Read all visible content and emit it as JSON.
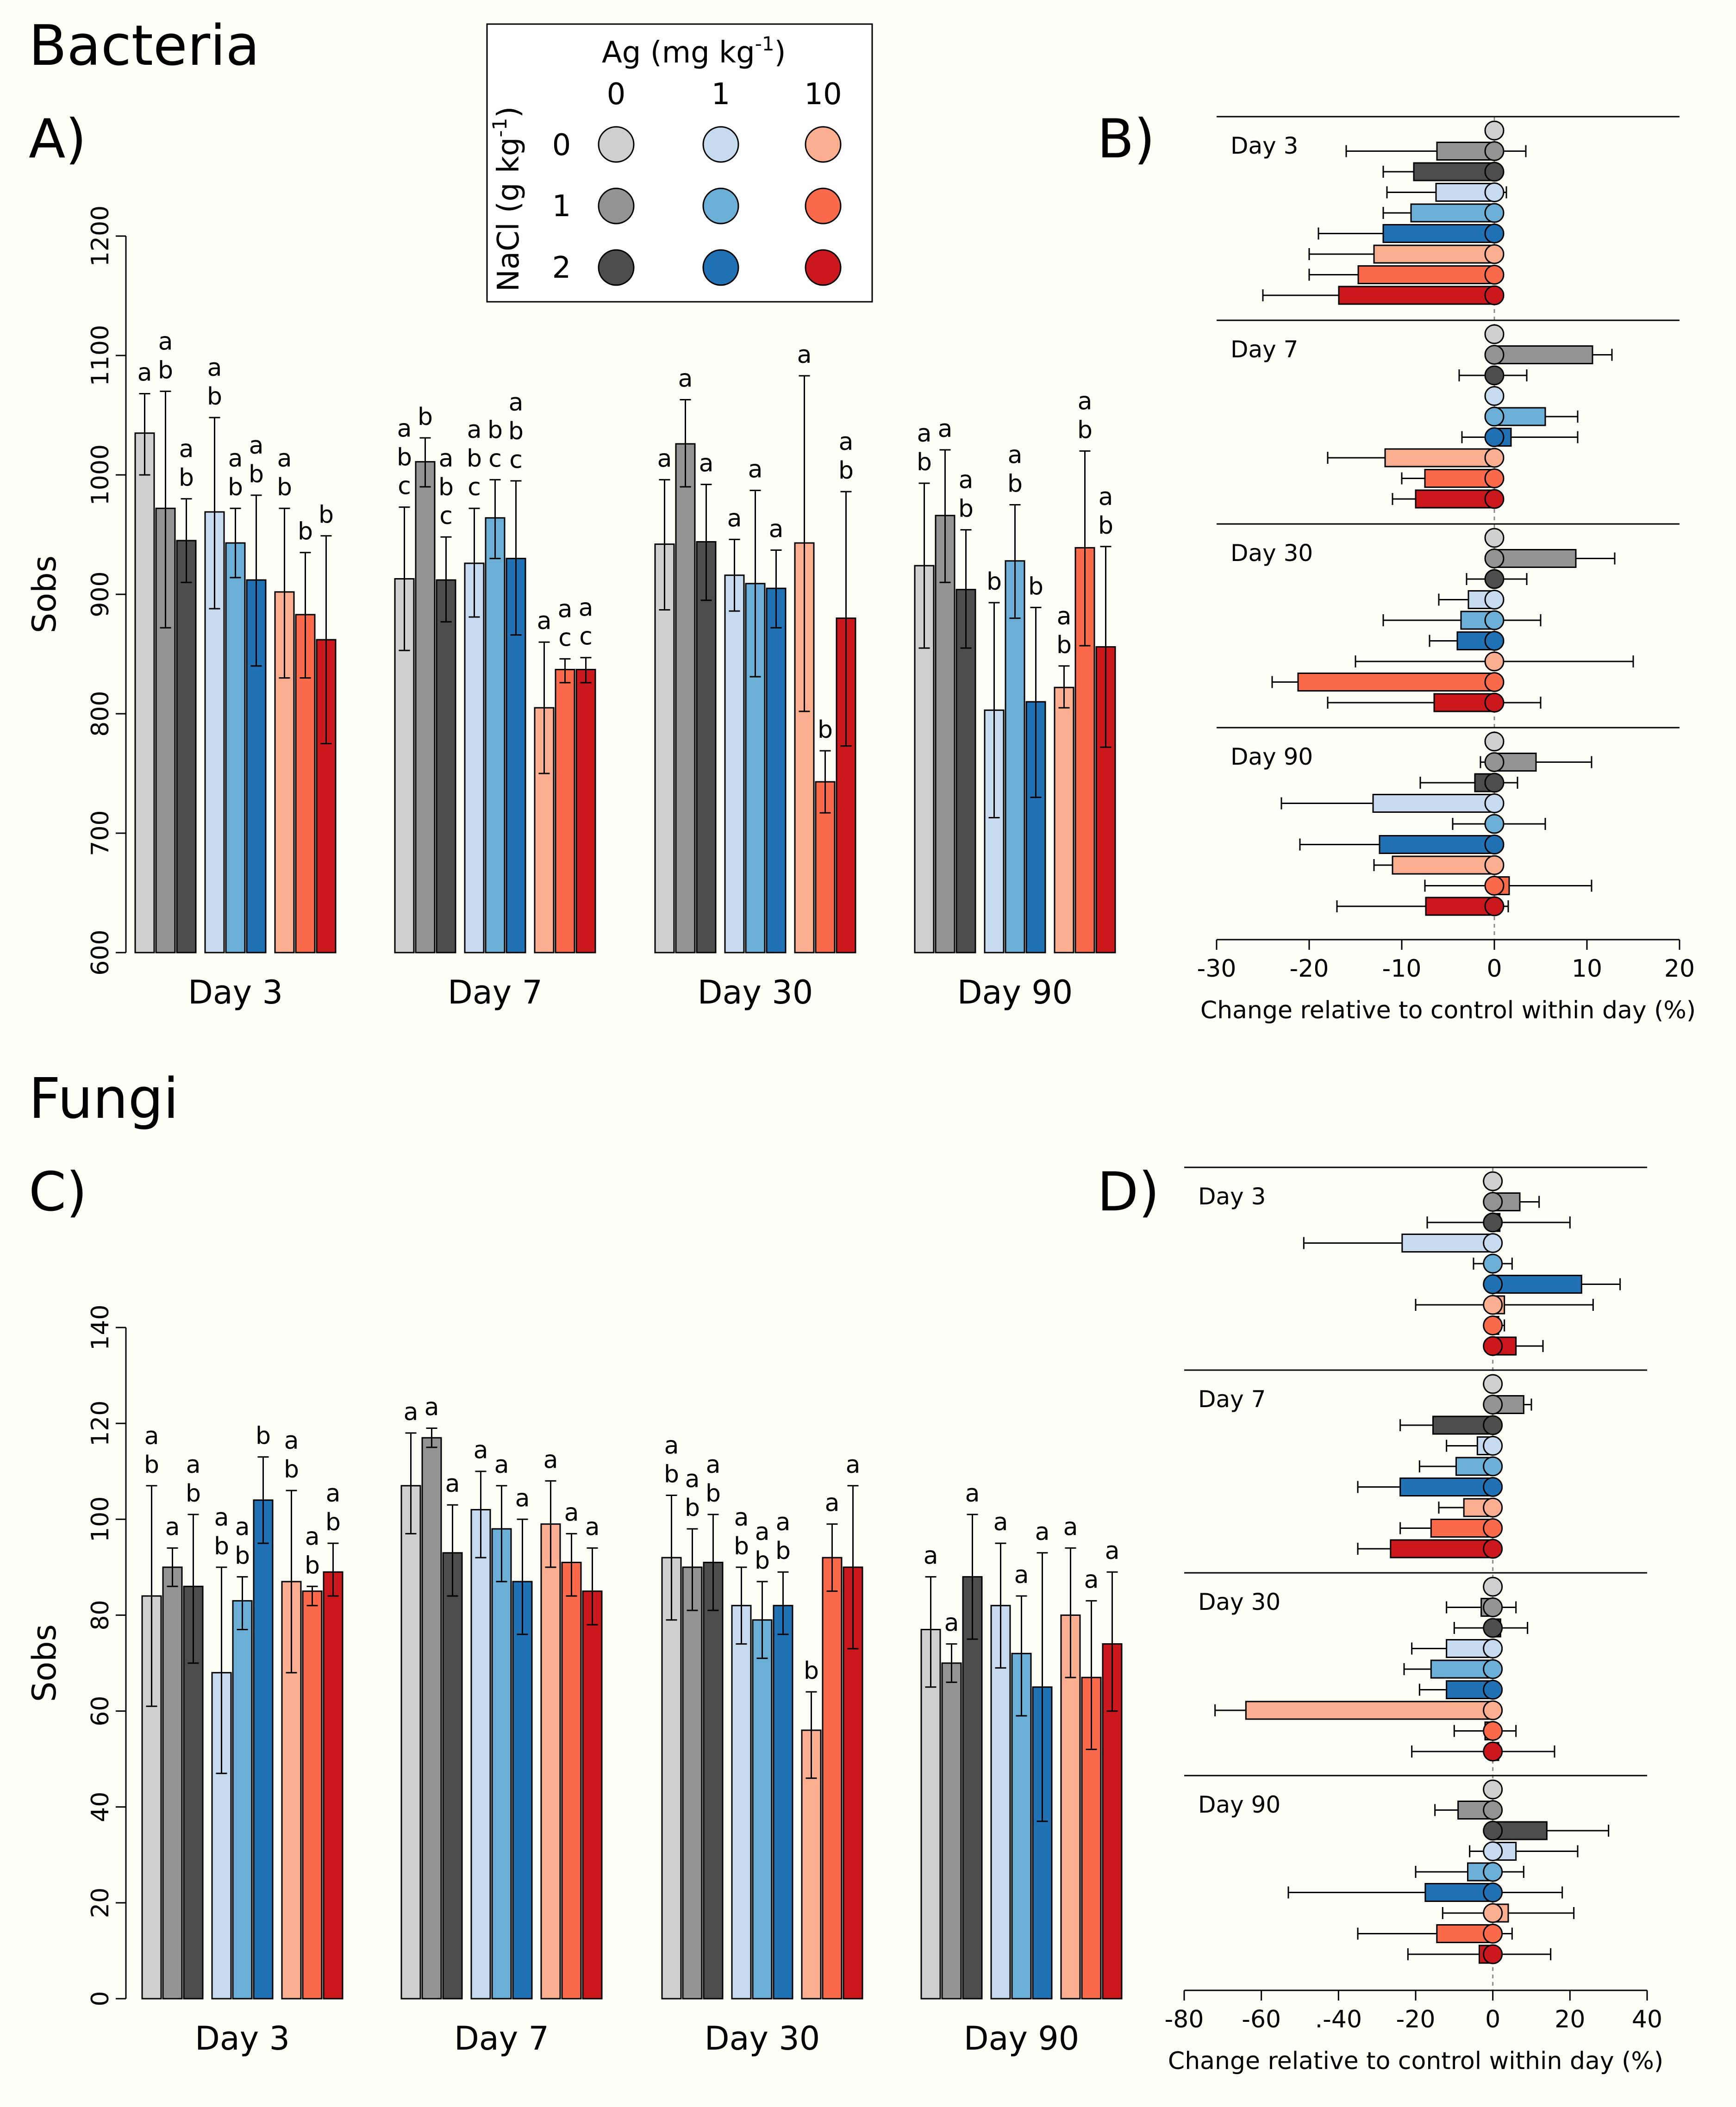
{
  "labels": {
    "bacteria": "Bacteria",
    "fungi": "Fungi",
    "panelA": "A)",
    "panelB": "B)",
    "panelC": "C)",
    "panelD": "D)"
  },
  "legend": {
    "ag_title": "Ag (mg kg",
    "ag_exp": "-1",
    "ag_close": ")",
    "ag_levels": [
      "0",
      "1",
      "10"
    ],
    "nacl_title": "NaCl (g kg",
    "nacl_exp": "-1",
    "nacl_close": ")",
    "nacl_levels": [
      "0",
      "1",
      "2"
    ]
  },
  "colors": [
    "#cfcfcf",
    "#939393",
    "#4d4d4d",
    "#c6dbef",
    "#6baed6",
    "#2171b5",
    "#fcae91",
    "#fb6a4a",
    "#cb181d"
  ],
  "chart_data": [
    {
      "id": "A",
      "type": "bar",
      "ylabel": "Sobs",
      "ylim": [
        600,
        1200
      ],
      "yticks": [
        "600",
        "700",
        "800",
        "900",
        "1000",
        "1100",
        "1200"
      ],
      "categories": [
        "Day 3",
        "Day 7",
        "Day 30",
        "Day 90"
      ],
      "values": [
        [
          1035,
          972,
          945,
          969,
          943,
          912,
          902,
          883,
          862
        ],
        [
          913,
          1011,
          912,
          926,
          964,
          930,
          805,
          837,
          837
        ],
        [
          942,
          1026,
          944,
          916,
          909,
          905,
          943,
          743,
          880
        ],
        [
          924,
          966,
          904,
          803,
          928,
          810,
          822,
          939,
          856
        ]
      ],
      "errors": [
        [
          [
            1000,
            1068
          ],
          [
            872,
            1070
          ],
          [
            910,
            980
          ],
          [
            888,
            1048
          ],
          [
            914,
            972
          ],
          [
            840,
            983
          ],
          [
            830,
            972
          ],
          [
            830,
            935
          ],
          [
            775,
            949
          ]
        ],
        [
          [
            853,
            973
          ],
          [
            990,
            1031
          ],
          [
            877,
            948
          ],
          [
            881,
            972
          ],
          [
            930,
            996
          ],
          [
            866,
            995
          ],
          [
            750,
            860
          ],
          [
            826,
            846
          ],
          [
            826,
            847
          ]
        ],
        [
          [
            887,
            996
          ],
          [
            990,
            1063
          ],
          [
            895,
            992
          ],
          [
            886,
            946
          ],
          [
            831,
            987
          ],
          [
            872,
            937
          ],
          [
            802,
            1083
          ],
          [
            717,
            769
          ],
          [
            773,
            986
          ]
        ],
        [
          [
            855,
            993
          ],
          [
            910,
            1021
          ],
          [
            855,
            954
          ],
          [
            713,
            893
          ],
          [
            880,
            975
          ],
          [
            730,
            889
          ],
          [
            805,
            840
          ],
          [
            857,
            1020
          ],
          [
            772,
            940
          ]
        ]
      ],
      "letters": [
        [
          "a",
          "ab",
          "ab",
          "ab",
          "ab",
          "ab",
          "ab",
          "b",
          "b"
        ],
        [
          "abc",
          "b",
          "abc",
          "abc",
          "bc",
          "abc",
          "a",
          "ac",
          "ac"
        ],
        [
          "a",
          "a",
          "a",
          "a",
          "a",
          "a",
          "a",
          "b",
          "ab"
        ],
        [
          "ab",
          "a",
          "ab",
          "b",
          "ab",
          "b",
          "ab",
          "ab",
          "ab"
        ]
      ]
    },
    {
      "id": "C",
      "type": "bar",
      "ylabel": "Sobs",
      "ylim": [
        0,
        140
      ],
      "yticks": [
        "0",
        "20",
        "40",
        "60",
        "80",
        "100",
        "120",
        "140"
      ],
      "categories": [
        "Day 3",
        "Day 7",
        "Day 30",
        "Day 90"
      ],
      "values": [
        [
          84,
          90,
          86,
          68,
          83,
          104,
          87,
          85,
          89
        ],
        [
          107,
          117,
          93,
          102,
          98,
          87,
          99,
          91,
          85
        ],
        [
          92,
          90,
          91,
          82,
          79,
          82,
          56,
          92,
          90
        ],
        [
          77,
          70,
          88,
          82,
          72,
          65,
          80,
          67,
          74
        ]
      ],
      "errors": [
        [
          [
            61,
            107
          ],
          [
            86,
            94
          ],
          [
            70,
            101
          ],
          [
            47,
            90
          ],
          [
            77,
            88
          ],
          [
            95,
            113
          ],
          [
            68,
            106
          ],
          [
            82,
            86
          ],
          [
            84,
            95
          ]
        ],
        [
          [
            97,
            118
          ],
          [
            115,
            119
          ],
          [
            84,
            103
          ],
          [
            92,
            110
          ],
          [
            87,
            107
          ],
          [
            76,
            100
          ],
          [
            90,
            108
          ],
          [
            84,
            97
          ],
          [
            78,
            94
          ]
        ],
        [
          [
            79,
            105
          ],
          [
            81,
            98
          ],
          [
            81,
            101
          ],
          [
            74,
            90
          ],
          [
            71,
            87
          ],
          [
            76,
            89
          ],
          [
            46,
            64
          ],
          [
            85,
            99
          ],
          [
            73,
            107
          ]
        ],
        [
          [
            65,
            88
          ],
          [
            66,
            74
          ],
          [
            75,
            101
          ],
          [
            69,
            95
          ],
          [
            59,
            84
          ],
          [
            37,
            93
          ],
          [
            67,
            94
          ],
          [
            52,
            83
          ],
          [
            60,
            89
          ]
        ]
      ],
      "letters": [
        [
          "ab",
          "a",
          "ab",
          "ab",
          "ab",
          "b",
          "ab",
          "ab",
          "ab"
        ],
        [
          "a",
          "a",
          "a",
          "a",
          "a",
          "a",
          "a",
          "a",
          "a"
        ],
        [
          "ab",
          "ab",
          "ab",
          "ab",
          "ab",
          "ab",
          "b",
          "a",
          "a"
        ],
        [
          "a",
          "a",
          "a",
          "a",
          "a",
          "a",
          "a",
          "a",
          "a"
        ]
      ]
    },
    {
      "id": "B",
      "type": "bar",
      "orientation": "horizontal",
      "xlabel": "Change relative to control within day (%)",
      "xlim": [
        -30,
        20
      ],
      "xticks": [
        "-30",
        "-20",
        "-10",
        "0",
        "10",
        "20"
      ],
      "groups": [
        {
          "label": "Day 3",
          "values": [
            0,
            -6.2,
            -8.7,
            -6.3,
            -9.0,
            -12.0,
            -13.0,
            -14.7,
            -16.8
          ],
          "errors": [
            [
              0,
              0
            ],
            [
              -16,
              3.4
            ],
            [
              -12,
              -3.6
            ],
            [
              -11.6,
              1.3
            ],
            [
              -12,
              -5.5
            ],
            [
              -19,
              -4
            ],
            [
              -20,
              -5
            ],
            [
              -20,
              -9
            ],
            [
              -25,
              -8
            ]
          ]
        },
        {
          "label": "Day 7",
          "values": [
            0,
            10.6,
            -0.2,
            0,
            5.5,
            1.8,
            -11.8,
            -7.5,
            -8.5
          ],
          "errors": [
            [
              0,
              0
            ],
            [
              8.5,
              12.7
            ],
            [
              -3.8,
              3.5
            ],
            [
              0,
              0
            ],
            [
              2,
              9
            ],
            [
              -3.5,
              9
            ],
            [
              -18,
              -5
            ],
            [
              -10,
              -5
            ],
            [
              -11,
              -5
            ]
          ]
        },
        {
          "label": "Day 30",
          "values": [
            0,
            8.8,
            0.2,
            -2.8,
            -3.6,
            -4.0,
            0.1,
            -21.2,
            -6.5
          ],
          "errors": [
            [
              0,
              0
            ],
            [
              5,
              13
            ],
            [
              -3,
              3.5
            ],
            [
              -6,
              0.8
            ],
            [
              -12,
              5
            ],
            [
              -7,
              0
            ],
            [
              -15,
              15
            ],
            [
              -24,
              -18.5
            ],
            [
              -18,
              5
            ]
          ]
        },
        {
          "label": "Day 90",
          "values": [
            0,
            4.5,
            -2.1,
            -13.1,
            -0.1,
            -12.4,
            -11.0,
            1.6,
            -7.4
          ],
          "errors": [
            [
              0,
              0
            ],
            [
              -1.5,
              10.5
            ],
            [
              -8,
              2.5
            ],
            [
              -23,
              -3.5
            ],
            [
              -4.5,
              5.5
            ],
            [
              -21,
              -4
            ],
            [
              -13,
              -9
            ],
            [
              -7.5,
              10.5
            ],
            [
              -17,
              1.5
            ]
          ]
        }
      ]
    },
    {
      "id": "D",
      "type": "bar",
      "orientation": "horizontal",
      "xlabel": "Change relative to control within day (%)",
      "xlim": [
        -80,
        40
      ],
      "xticks": [
        "-80",
        "-60",
        ".-40",
        "-20",
        "0",
        "20",
        "40"
      ],
      "groups": [
        {
          "label": "Day 3",
          "values": [
            0,
            7.0,
            1.8,
            -23.5,
            -0.5,
            23.0,
            3.0,
            1.5,
            6.0
          ],
          "errors": [
            [
              0,
              0
            ],
            [
              2,
              12
            ],
            [
              -17,
              20
            ],
            [
              -49,
              0
            ],
            [
              -5,
              5
            ],
            [
              13,
              33
            ],
            [
              -20,
              26
            ],
            [
              0,
              3
            ],
            [
              0,
              13
            ]
          ]
        },
        {
          "label": "Day 7",
          "values": [
            0,
            8.0,
            -15.5,
            -4.0,
            -9.5,
            -24.0,
            -7.5,
            -16.0,
            -26.5
          ],
          "errors": [
            [
              0,
              0
            ],
            [
              6,
              10
            ],
            [
              -24,
              -5
            ],
            [
              -12,
              0
            ],
            [
              -19,
              -2
            ],
            [
              -35,
              -13
            ],
            [
              -14,
              0
            ],
            [
              -24,
              -10
            ],
            [
              -35,
              -18
            ]
          ]
        },
        {
          "label": "Day 30",
          "values": [
            0,
            -3.0,
            2.0,
            -12.0,
            -16.0,
            -12.0,
            -64.0,
            -2.0,
            1.5
          ],
          "errors": [
            [
              0,
              0
            ],
            [
              -12,
              6
            ],
            [
              -10,
              9
            ],
            [
              -21,
              -3
            ],
            [
              -23,
              -9
            ],
            [
              -19,
              -5
            ],
            [
              -72,
              -56
            ],
            [
              -10,
              6
            ],
            [
              -21,
              16
            ]
          ]
        },
        {
          "label": "Day 90",
          "values": [
            0,
            -9.0,
            14.0,
            6.0,
            -6.5,
            -17.5,
            4.0,
            -14.5,
            -3.5
          ],
          "errors": [
            [
              0,
              0
            ],
            [
              -15,
              -2
            ],
            [
              0,
              30
            ],
            [
              -6,
              22
            ],
            [
              -20,
              8
            ],
            [
              -53,
              18
            ],
            [
              -13,
              21
            ],
            [
              -35,
              5
            ],
            [
              -22,
              15
            ]
          ]
        }
      ]
    }
  ]
}
